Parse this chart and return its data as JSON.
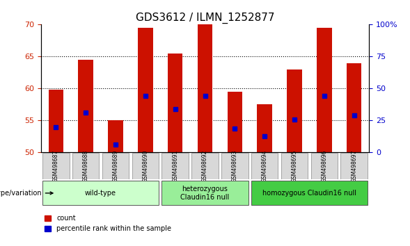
{
  "title": "GDS3612 / ILMN_1252877",
  "samples": [
    "GSM498687",
    "GSM498688",
    "GSM498689",
    "GSM498690",
    "GSM498691",
    "GSM498692",
    "GSM498693",
    "GSM498694",
    "GSM498695",
    "GSM498696",
    "GSM498697"
  ],
  "bar_tops": [
    59.8,
    64.5,
    55.0,
    69.5,
    65.5,
    70.0,
    59.5,
    57.5,
    63.0,
    69.5,
    64.0
  ],
  "bar_bottom": 50.0,
  "blue_markers": [
    54.0,
    56.2,
    51.2,
    58.8,
    56.8,
    58.8,
    53.8,
    52.5,
    55.2,
    58.8,
    55.8
  ],
  "ylim": [
    50,
    70
  ],
  "y_left_ticks": [
    50,
    55,
    60,
    65,
    70
  ],
  "y_right_ticks": [
    0,
    25,
    50,
    75,
    100
  ],
  "bar_color": "#cc1100",
  "blue_color": "#0000cc",
  "groups": [
    {
      "label": "wild-type",
      "start": 0,
      "end": 4,
      "color": "#ccffcc"
    },
    {
      "label": "heterozygous\nClaudin16 null",
      "start": 4,
      "end": 7,
      "color": "#99ee99"
    },
    {
      "label": "homozygous Claudin16 null",
      "start": 7,
      "end": 11,
      "color": "#44cc44"
    }
  ],
  "xlabel_label": "genotype/variation",
  "legend_count_label": "count",
  "legend_pct_label": "percentile rank within the sample",
  "title_fontsize": 11,
  "tick_color_left": "#cc2200",
  "tick_color_right": "#0000cc"
}
